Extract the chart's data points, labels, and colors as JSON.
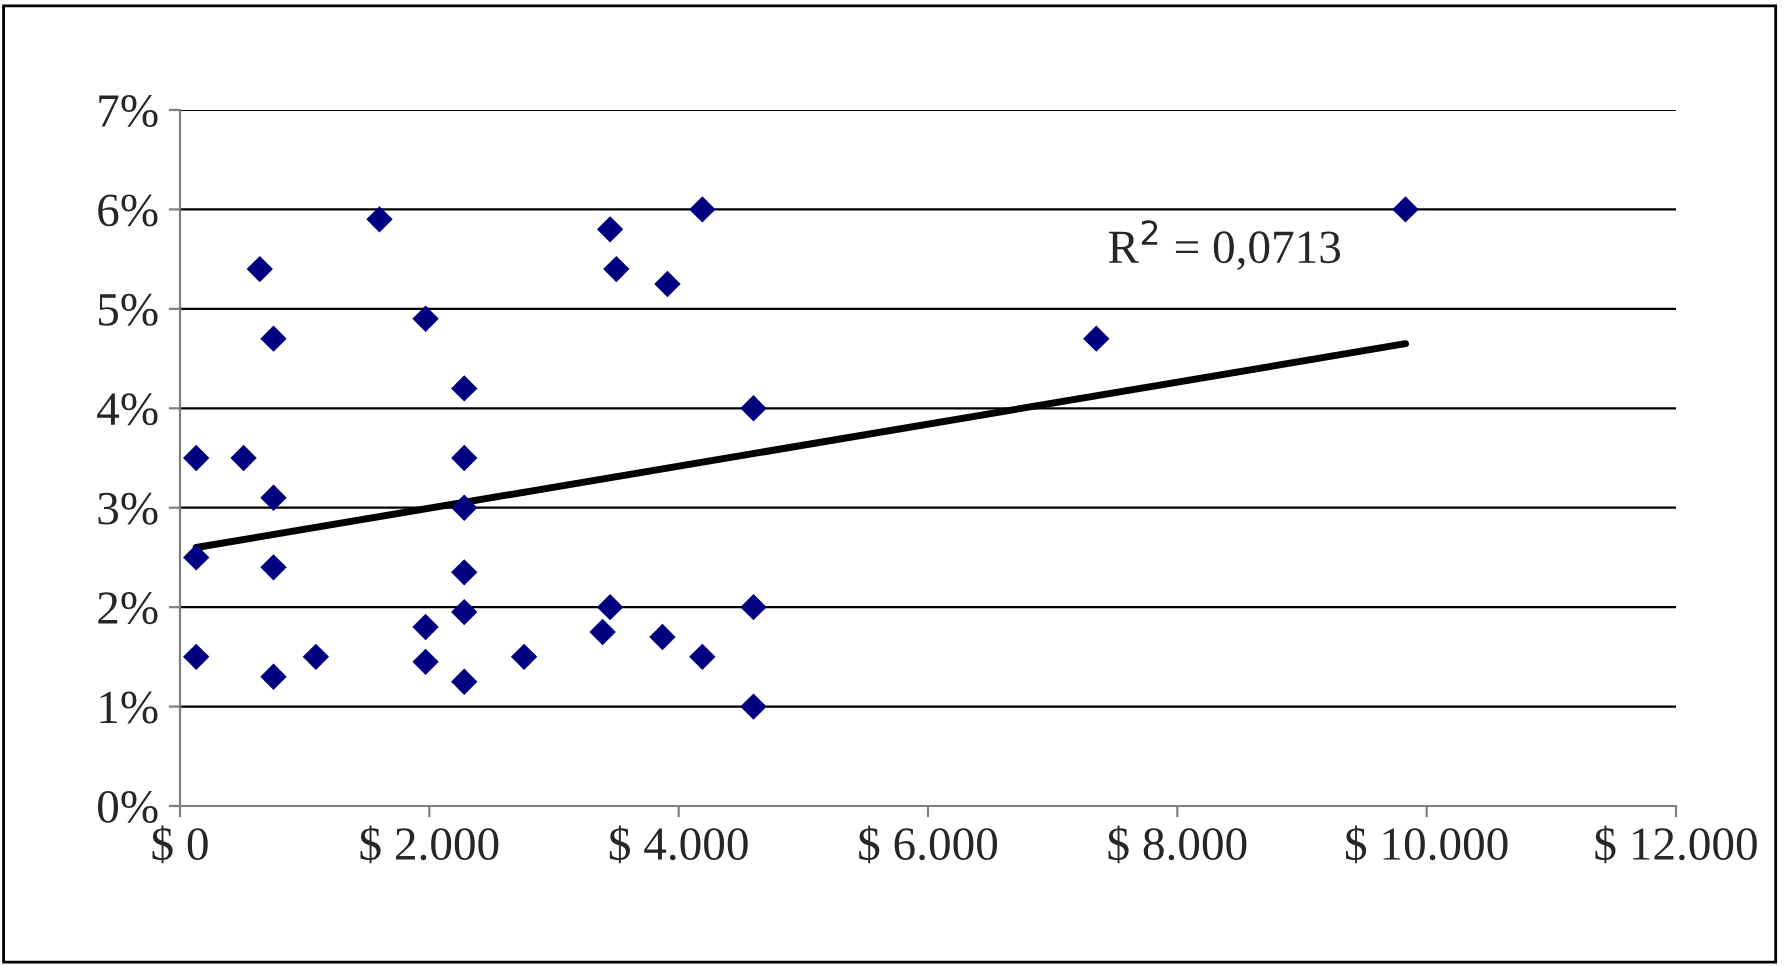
{
  "chart_data": {
    "type": "scatter",
    "grid": "y",
    "legend": false,
    "annotations": [
      "R$^{2}$ = 0,0713"
    ],
    "xlim": [
      0,
      12000
    ],
    "ylim": [
      0,
      7
    ],
    "xticks": [
      {
        "value": 0,
        "label": "$ 0"
      },
      {
        "value": 2000,
        "label": "$ 2.000"
      },
      {
        "value": 4000,
        "label": "$ 4.000"
      },
      {
        "value": 6000,
        "label": "$ 6.000"
      },
      {
        "value": 8000,
        "label": "$ 8.000"
      },
      {
        "value": 10000,
        "label": "$ 10.000"
      },
      {
        "value": 12000,
        "label": "$ 12.000"
      }
    ],
    "yticks": [
      {
        "value": 0,
        "label": "0%"
      },
      {
        "value": 1,
        "label": "1%"
      },
      {
        "value": 2,
        "label": "2%"
      },
      {
        "value": 3,
        "label": "3%"
      },
      {
        "value": 4,
        "label": "4%"
      },
      {
        "value": 5,
        "label": "5%"
      },
      {
        "value": 6,
        "label": "6%"
      },
      {
        "value": 7,
        "label": "7%"
      }
    ],
    "series": [
      {
        "marker": "diamond",
        "color": "#000080",
        "x": [
          130,
          130,
          130,
          510,
          640,
          750,
          750,
          750,
          750,
          1090,
          1600,
          1970,
          1970,
          1970,
          2280,
          2280,
          2280,
          2280,
          2280,
          2280,
          2760,
          3450,
          3500,
          3390,
          3450,
          3870,
          3910,
          4190,
          4190,
          4600,
          4600,
          4600,
          7350,
          9830
        ],
        "values": [
          3.5,
          2.5,
          1.5,
          3.5,
          5.4,
          3.1,
          4.7,
          2.4,
          1.3,
          1.5,
          5.9,
          4.9,
          1.8,
          1.45,
          4.2,
          3.5,
          3.0,
          2.35,
          1.95,
          1.25,
          1.5,
          5.8,
          5.4,
          1.75,
          2.0,
          1.7,
          5.25,
          6.0,
          1.5,
          4.0,
          2.0,
          1.0,
          4.7,
          6.0
        ]
      },
      {
        "type": "line",
        "color": "#000000",
        "x": [
          130,
          9830
        ],
        "values": [
          2.6,
          4.65
        ]
      }
    ]
  }
}
